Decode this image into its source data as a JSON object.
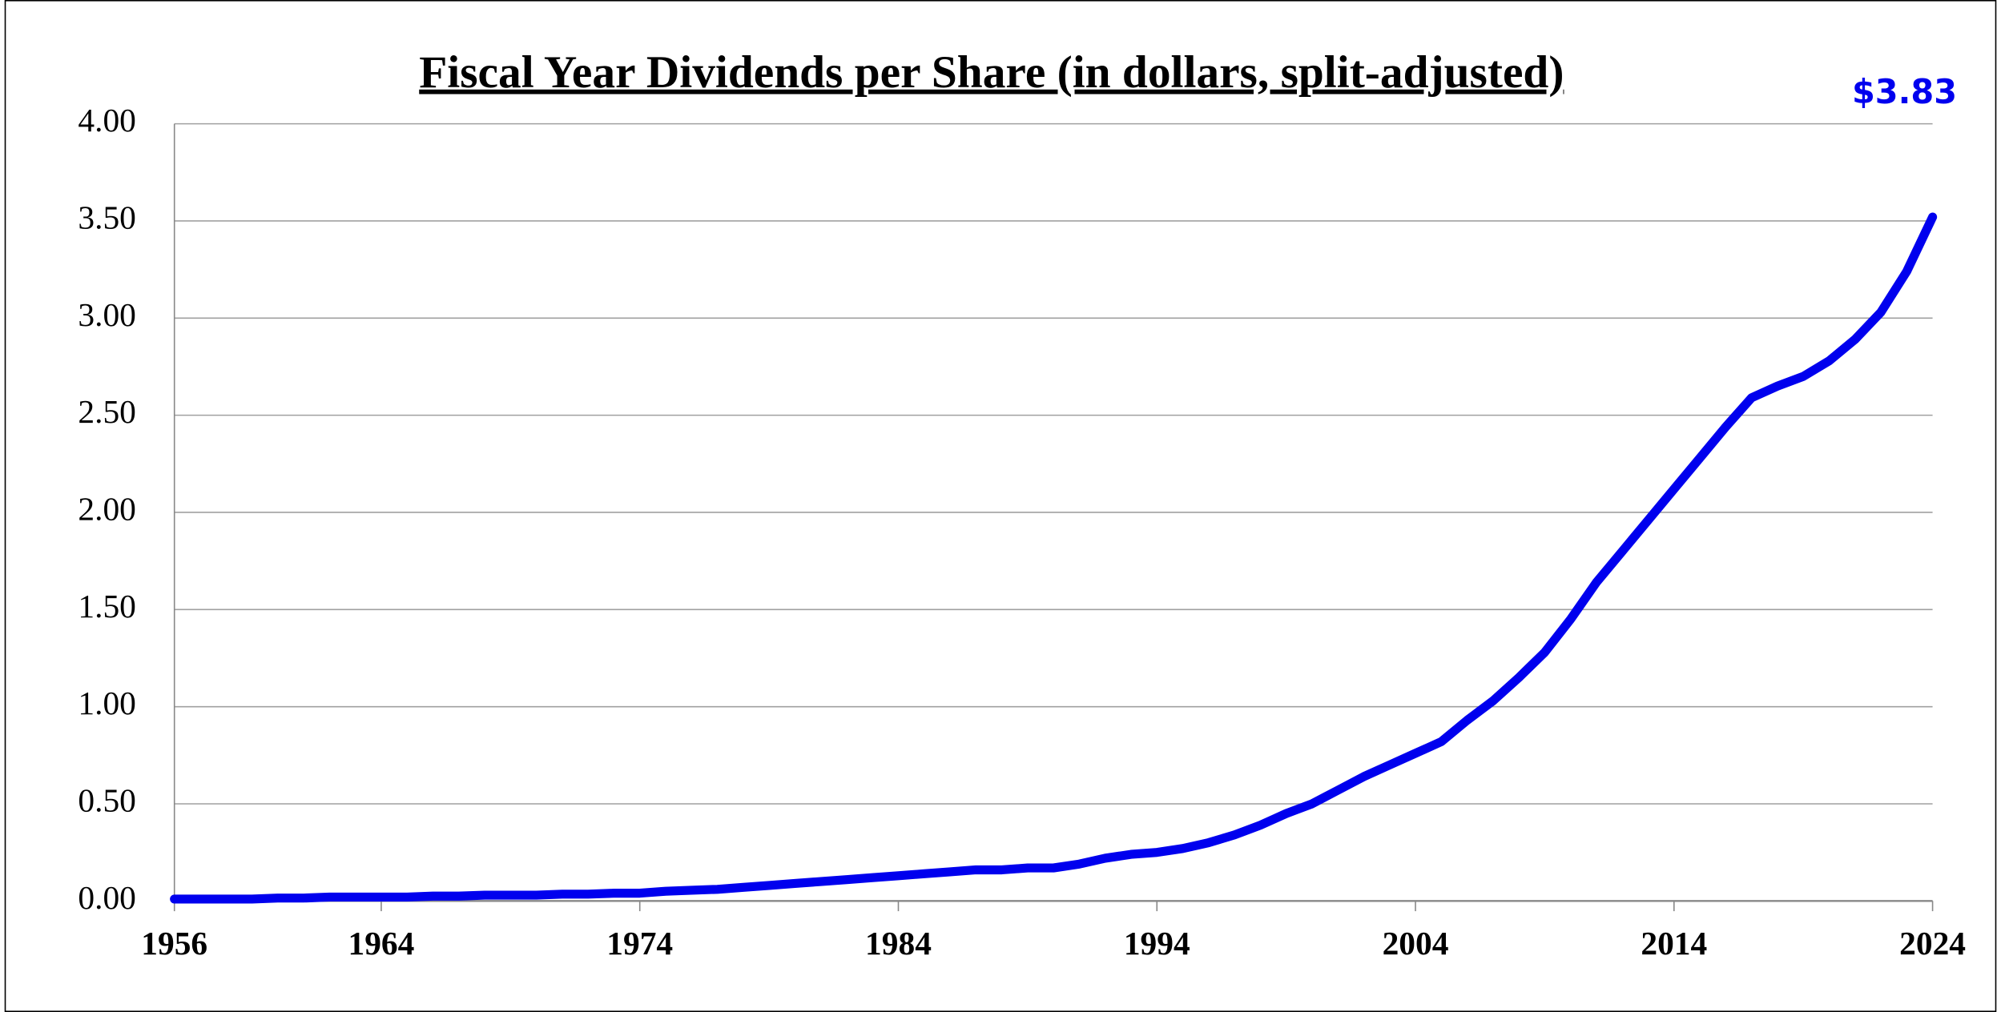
{
  "chart_data": {
    "type": "line",
    "title": "Fiscal Year Dividends per Share (in dollars, split-adjusted)",
    "annotation": "$3.83",
    "x": [
      1956,
      1957,
      1958,
      1959,
      1960,
      1961,
      1962,
      1963,
      1964,
      1965,
      1966,
      1967,
      1968,
      1969,
      1970,
      1971,
      1972,
      1973,
      1974,
      1975,
      1976,
      1977,
      1978,
      1979,
      1980,
      1981,
      1982,
      1983,
      1984,
      1985,
      1986,
      1987,
      1988,
      1989,
      1990,
      1991,
      1992,
      1993,
      1994,
      1995,
      1996,
      1997,
      1998,
      1999,
      2000,
      2001,
      2002,
      2003,
      2004,
      2005,
      2006,
      2007,
      2008,
      2009,
      2010,
      2011,
      2012,
      2013,
      2014,
      2015,
      2016,
      2017,
      2018,
      2019,
      2020,
      2021,
      2022,
      2023,
      2024
    ],
    "series": [
      {
        "name": "Dividends per Share",
        "color": "#0000ee",
        "values": [
          0.01,
          0.01,
          0.01,
          0.01,
          0.015,
          0.015,
          0.02,
          0.02,
          0.02,
          0.02,
          0.025,
          0.025,
          0.03,
          0.03,
          0.03,
          0.035,
          0.035,
          0.04,
          0.04,
          0.05,
          0.055,
          0.06,
          0.07,
          0.08,
          0.09,
          0.1,
          0.11,
          0.12,
          0.13,
          0.14,
          0.15,
          0.16,
          0.16,
          0.17,
          0.17,
          0.19,
          0.22,
          0.24,
          0.25,
          0.27,
          0.3,
          0.34,
          0.39,
          0.45,
          0.5,
          0.57,
          0.64,
          0.7,
          0.76,
          0.82,
          0.93,
          1.03,
          1.15,
          1.28,
          1.45,
          1.64,
          1.8,
          1.96,
          2.12,
          2.28,
          2.44,
          2.59,
          2.65,
          2.7,
          2.78,
          2.89,
          3.03,
          3.24,
          3.52
        ]
      }
    ],
    "xlim": [
      1956,
      2024
    ],
    "xticks": [
      1956,
      1964,
      1974,
      1984,
      1994,
      2004,
      2014,
      2024
    ],
    "ylim": [
      0,
      4
    ],
    "yticks": [
      {
        "value": 0,
        "label": "0.00"
      },
      {
        "value": 0.5,
        "label": "0.50"
      },
      {
        "value": 1,
        "label": "1.00"
      },
      {
        "value": 1.5,
        "label": "1.50"
      },
      {
        "value": 2,
        "label": "2.00"
      },
      {
        "value": 2.5,
        "label": "2.50"
      },
      {
        "value": 3,
        "label": "3.00"
      },
      {
        "value": 3.5,
        "label": "3.50"
      },
      {
        "value": 4,
        "label": "4.00"
      }
    ],
    "grid": true
  }
}
